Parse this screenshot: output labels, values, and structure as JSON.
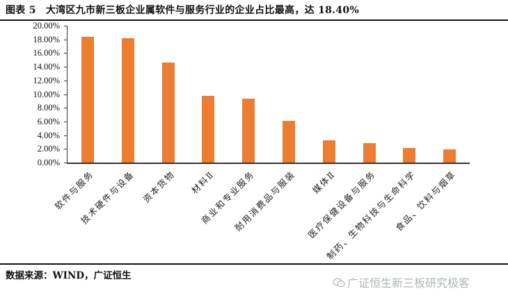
{
  "title": {
    "figure_no": "图表 5",
    "text": "大湾区九市新三板企业属软件与服务行业的企业占比最高，达 18.40%"
  },
  "source": "数据来源：WIND，广证恒生",
  "watermark": "广证恒生新三板研究极客",
  "chart_data": {
    "type": "bar",
    "title": "大湾区九市新三板企业属软件与服务行业的企业占比最高，达 18.40%",
    "xlabel": "",
    "ylabel": "",
    "ylim": [
      0,
      20
    ],
    "yticks": [
      "0.00%",
      "2.00%",
      "4.00%",
      "6.00%",
      "8.00%",
      "10.00%",
      "12.00%",
      "14.00%",
      "16.00%",
      "18.00%",
      "20.00%"
    ],
    "categories": [
      "软件与服务",
      "技术硬件与设备",
      "资本货物",
      "材料Ⅱ",
      "商业和专业服务",
      "耐用消费品与服装",
      "媒体Ⅱ",
      "医疗保健设备与服务",
      "制药、生物科技与生命科学",
      "食品、饮料与烟草"
    ],
    "values": [
      18.4,
      18.2,
      14.6,
      9.7,
      9.3,
      6.1,
      3.2,
      2.8,
      2.1,
      1.9
    ],
    "unit": "%",
    "series_color": "#ED7D31",
    "grid": false,
    "legend": "none"
  }
}
